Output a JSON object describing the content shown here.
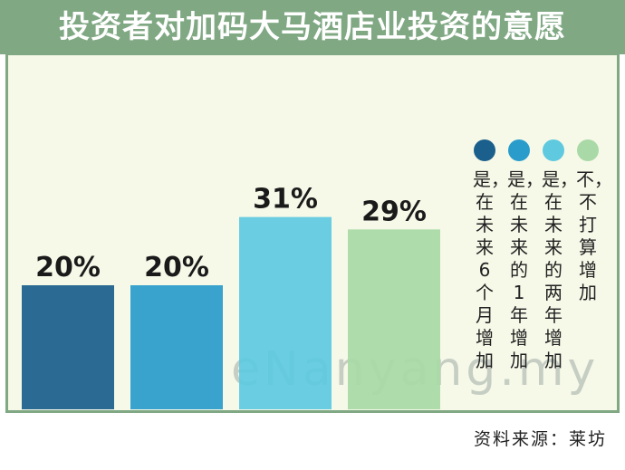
{
  "header": {
    "title": "投资者对加码大马酒店业投资的意愿"
  },
  "chart_data": {
    "type": "bar",
    "title": "投资者对加码大马酒店业投资的意愿",
    "categories": [
      "是，在未来6个月增加",
      "是，在未来的1年增加",
      "是，在未来的两年增加",
      "不，不打算增加"
    ],
    "values": [
      20,
      20,
      31,
      29
    ],
    "value_labels": [
      "20%",
      "20%",
      "31%",
      "29%"
    ],
    "unit": "%",
    "colors": [
      "#1b5f8c",
      "#2a9ccb",
      "#5fc9e0",
      "#a9d9a6"
    ],
    "ylim": [
      0,
      40
    ],
    "grid": false,
    "legend_position": "right"
  },
  "legend": {
    "items": [
      {
        "label": "是，在未来6个月增加",
        "color": "#1b5f8c"
      },
      {
        "label": "是，在未来的1年增加",
        "color": "#2a9ccb"
      },
      {
        "label": "是，在未来的两年增加",
        "color": "#5fc9e0"
      },
      {
        "label": "不，不打算增加",
        "color": "#a9d9a6"
      }
    ]
  },
  "watermark": "eNanyang.my",
  "source": "资料来源：莱坊"
}
